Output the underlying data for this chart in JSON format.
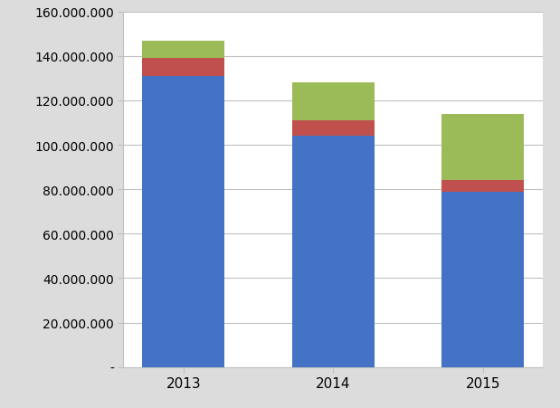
{
  "categories": [
    "2013",
    "2014",
    "2015"
  ],
  "blue": [
    131000000,
    104000000,
    79000000
  ],
  "red": [
    8000000,
    7000000,
    5000000
  ],
  "green": [
    8000000,
    17000000,
    30000000
  ],
  "blue_color": "#4472C4",
  "red_color": "#C0504D",
  "green_color": "#9BBB59",
  "ylim": [
    0,
    160000000
  ],
  "yticks": [
    0,
    20000000,
    40000000,
    60000000,
    80000000,
    100000000,
    120000000,
    140000000,
    160000000
  ],
  "background_color": "#FFFFFF",
  "outer_background": "#DCDCDC",
  "grid_color": "#C0C0C0",
  "bar_width": 0.55,
  "tick_label_fontsize": 10,
  "xtick_label_fontsize": 11
}
